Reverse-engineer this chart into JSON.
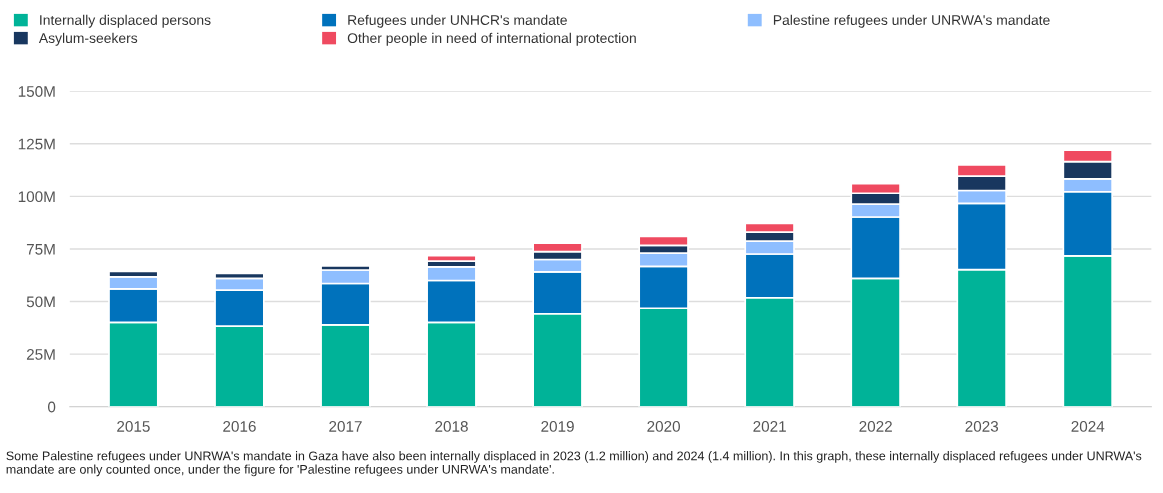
{
  "chart_data": {
    "type": "bar",
    "stacked": true,
    "categories": [
      "2015",
      "2016",
      "2017",
      "2018",
      "2019",
      "2020",
      "2021",
      "2022",
      "2023",
      "2024"
    ],
    "series": [
      {
        "name": "Internally displaced persons",
        "color": "#00b398",
        "values": [
          40.1,
          38.3,
          38.9,
          40.1,
          44.2,
          46.8,
          51.8,
          61.0,
          65.2,
          71.7
        ]
      },
      {
        "name": "Refugees under UNHCR's mandate",
        "color": "#0072bc",
        "values": [
          15.9,
          17.1,
          19.7,
          19.9,
          19.9,
          19.9,
          20.8,
          29.2,
          31.5,
          30.5
        ]
      },
      {
        "name": "Palestine refugees under UNRWA's mandate",
        "color": "#8ebeff",
        "values": [
          5.7,
          5.6,
          6.4,
          6.5,
          5.9,
          6.3,
          6.1,
          6.1,
          6.1,
          6.1
        ]
      },
      {
        "name": "Asylum-seekers",
        "color": "#18375f",
        "values": [
          2.6,
          2.4,
          1.9,
          2.7,
          3.7,
          3.7,
          4.3,
          5.2,
          6.8,
          8.2
        ]
      },
      {
        "name": "Other people in need of international protection",
        "color": "#ef4a60",
        "values": [
          null,
          null,
          null,
          2.6,
          4.0,
          4.3,
          4.1,
          4.6,
          5.4,
          5.5
        ]
      }
    ],
    "ylim": [
      0,
      150
    ],
    "yticks": [
      0,
      {
        "value": 25,
        "label": "25M"
      },
      {
        "value": 50,
        "label": "50M"
      },
      {
        "value": 75,
        "label": "75M"
      },
      {
        "value": 100,
        "label": "100M"
      },
      {
        "value": 125,
        "label": "125M"
      },
      {
        "value": 150,
        "label": "150M"
      }
    ],
    "grid": "y",
    "legend": "top",
    "annotations": [
      "Some Palestine refugees under UNRWA's mandate in Gaza have also been internally displaced in 2023 (1.2 million) and 2024 (1.4 million). In this graph, these internally displaced refugees under UNRWA's mandate are only counted once, under the figure for 'Palestine refugees under UNRWA's mandate'."
    ]
  }
}
